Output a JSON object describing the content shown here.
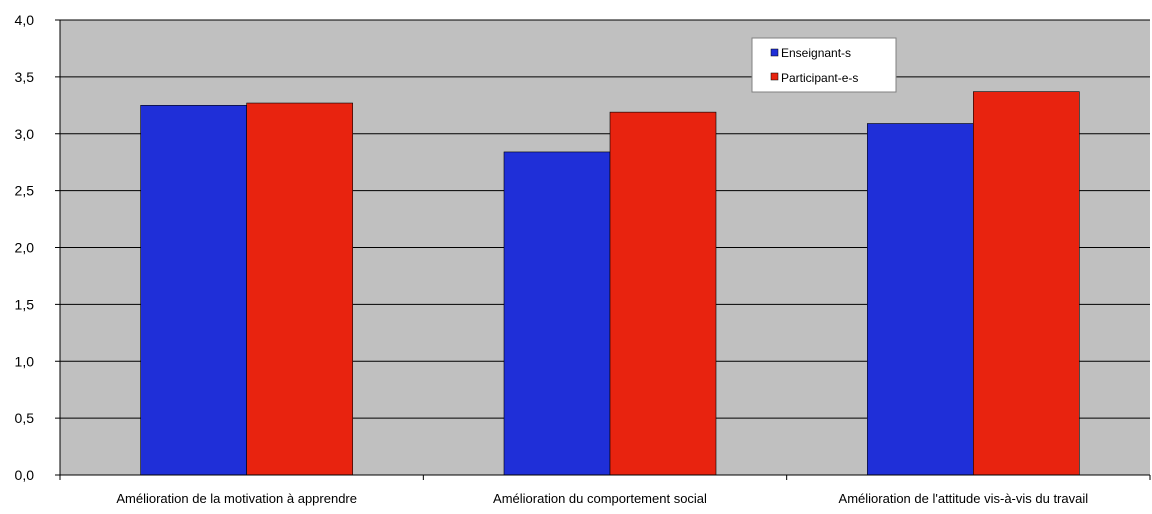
{
  "chart_data": {
    "type": "bar",
    "title": "",
    "xlabel": "",
    "ylabel": "",
    "categories": [
      "Amélioration de la motivation à apprendre",
      "Amélioration du comportement social",
      "Amélioration de l'attitude vis-à-vis du travail"
    ],
    "series": [
      {
        "name": "Enseignant-s",
        "values": [
          3.25,
          2.84,
          3.09
        ],
        "color": "#1f2fd8"
      },
      {
        "name": "Participant-e-s",
        "values": [
          3.27,
          3.19,
          3.37
        ],
        "color": "#e8230f"
      }
    ],
    "ylim": [
      0,
      4.0
    ],
    "yticks": [
      "0,0",
      "0,5",
      "1,0",
      "1,5",
      "2,0",
      "2,5",
      "3,0",
      "3,5",
      "4,0"
    ],
    "grid": true,
    "legend_position": "top-right",
    "plot_background": "#c0c0c0"
  }
}
